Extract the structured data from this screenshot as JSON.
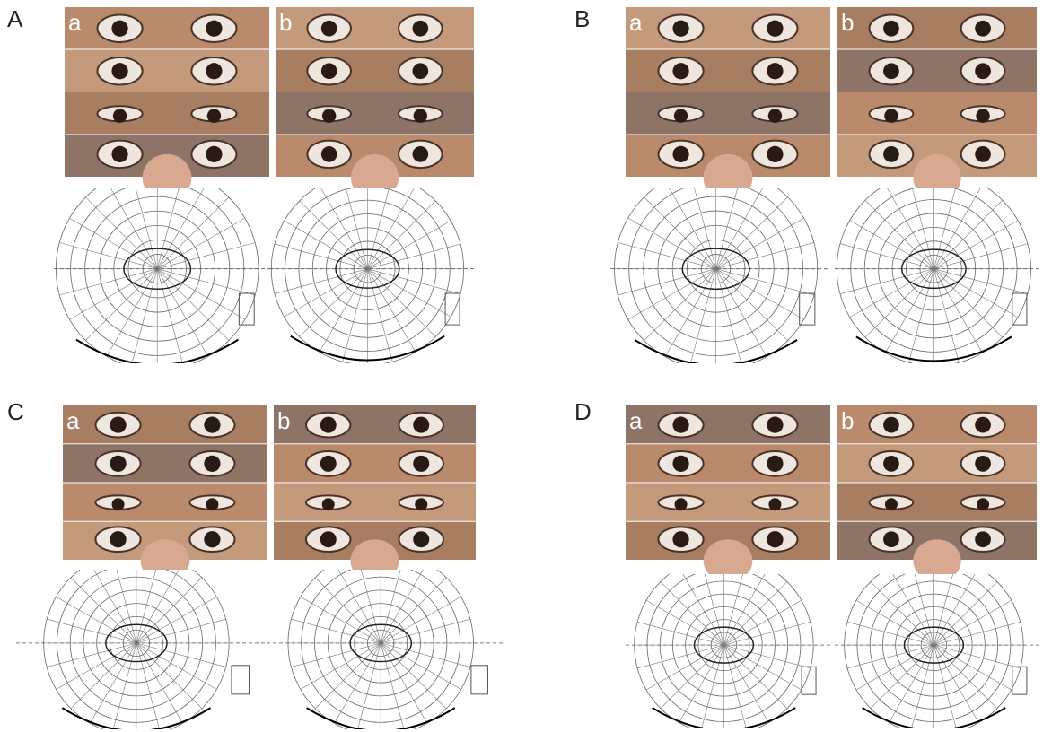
{
  "panels": [
    {
      "label": "A",
      "sub": [
        "a",
        "b"
      ]
    },
    {
      "label": "B",
      "sub": [
        "a",
        "b"
      ]
    },
    {
      "label": "C",
      "sub": [
        "a",
        "b"
      ]
    },
    {
      "label": "D",
      "sub": [
        "a",
        "b"
      ]
    }
  ]
}
